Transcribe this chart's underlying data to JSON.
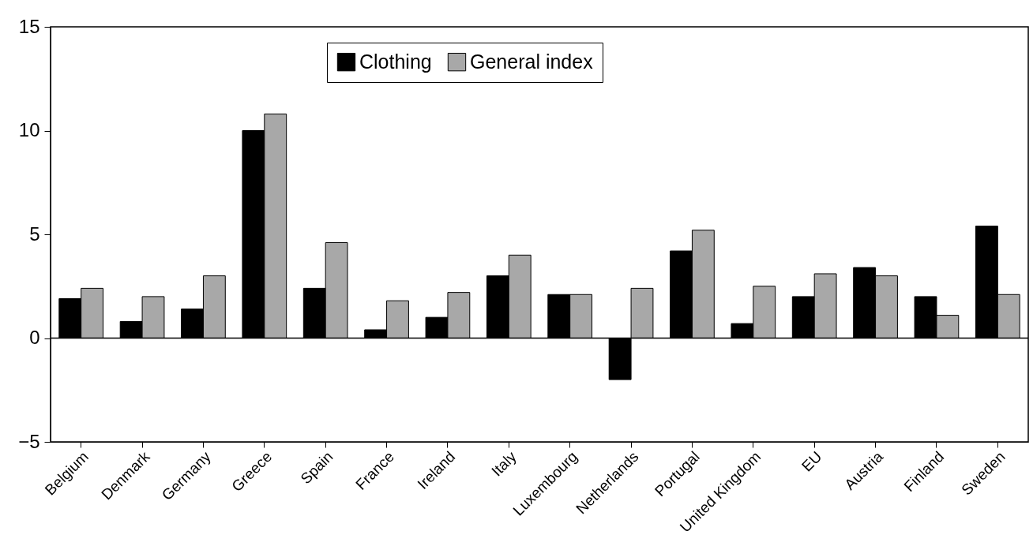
{
  "chart_data": {
    "type": "bar",
    "categories": [
      "Belgium",
      "Denmark",
      "Germany",
      "Greece",
      "Spain",
      "France",
      "Ireland",
      "Italy",
      "Luxembourg",
      "Netherlands",
      "Portugal",
      "United Kingdom",
      "EU",
      "Austria",
      "Finland",
      "Sweden"
    ],
    "series": [
      {
        "name": "Clothing",
        "color": "#000000",
        "values": [
          1.9,
          0.8,
          1.4,
          10.0,
          2.4,
          0.4,
          1.0,
          3.0,
          2.1,
          -2.0,
          4.2,
          0.7,
          2.0,
          3.4,
          2.0,
          5.4
        ]
      },
      {
        "name": "General index",
        "color": "#a8a8a8",
        "values": [
          2.4,
          2.0,
          3.0,
          10.8,
          4.6,
          1.8,
          2.2,
          4.0,
          2.1,
          2.4,
          5.2,
          2.5,
          3.1,
          3.0,
          1.1,
          2.1
        ]
      }
    ],
    "ylim": [
      -5,
      15
    ],
    "yticks": [
      -5,
      0,
      5,
      10,
      15
    ],
    "ref_lines": [
      {
        "axis": "y",
        "value": 0
      }
    ],
    "grid": false,
    "legend": "top"
  }
}
